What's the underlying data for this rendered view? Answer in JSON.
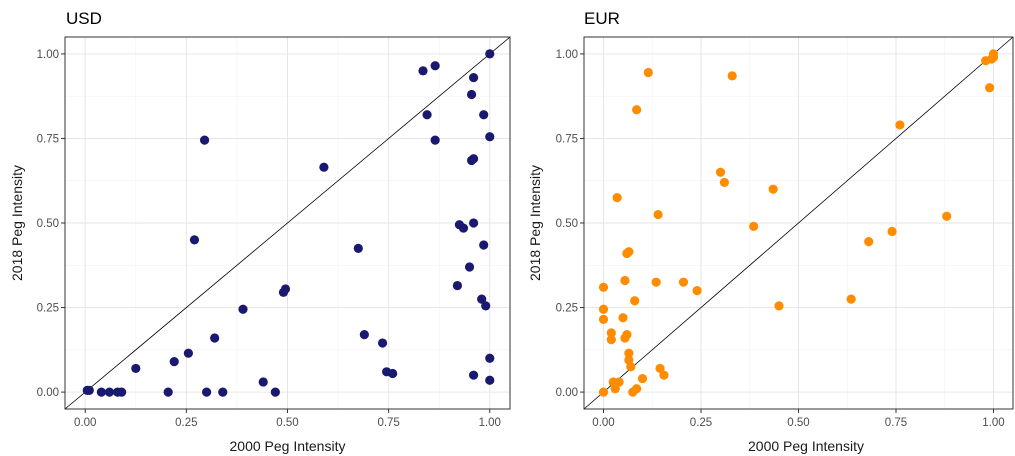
{
  "chart_data": [
    {
      "type": "scatter",
      "title": "USD",
      "xlabel": "2000 Peg Intensity",
      "ylabel": "2018 Peg Intensity",
      "xlim": [
        -0.05,
        1.05
      ],
      "ylim": [
        -0.05,
        1.05
      ],
      "xticks": [
        "0.00",
        "0.25",
        "0.50",
        "0.75",
        "1.00"
      ],
      "yticks": [
        "0.00",
        "0.25",
        "0.50",
        "0.75",
        "1.00"
      ],
      "grid": true,
      "reference_line": "y = x",
      "color": "#191970",
      "points": [
        [
          0.005,
          0.005
        ],
        [
          0.01,
          0.005
        ],
        [
          0.04,
          0.0
        ],
        [
          0.06,
          0.0
        ],
        [
          0.08,
          0.0
        ],
        [
          0.09,
          0.0
        ],
        [
          0.125,
          0.07
        ],
        [
          0.205,
          0.0
        ],
        [
          0.22,
          0.09
        ],
        [
          0.255,
          0.115
        ],
        [
          0.27,
          0.45
        ],
        [
          0.295,
          0.745
        ],
        [
          0.3,
          0.0
        ],
        [
          0.32,
          0.16
        ],
        [
          0.34,
          0.0
        ],
        [
          0.39,
          0.245
        ],
        [
          0.44,
          0.03
        ],
        [
          0.47,
          0.0
        ],
        [
          0.49,
          0.295
        ],
        [
          0.495,
          0.305
        ],
        [
          0.59,
          0.665
        ],
        [
          0.675,
          0.425
        ],
        [
          0.69,
          0.17
        ],
        [
          0.735,
          0.145
        ],
        [
          0.745,
          0.06
        ],
        [
          0.76,
          0.055
        ],
        [
          0.835,
          0.95
        ],
        [
          0.845,
          0.82
        ],
        [
          0.865,
          0.965
        ],
        [
          0.865,
          0.745
        ],
        [
          0.92,
          0.315
        ],
        [
          0.925,
          0.495
        ],
        [
          0.935,
          0.485
        ],
        [
          0.95,
          0.37
        ],
        [
          0.955,
          0.685
        ],
        [
          0.955,
          0.88
        ],
        [
          0.96,
          0.69
        ],
        [
          0.96,
          0.93
        ],
        [
          0.96,
          0.5
        ],
        [
          0.96,
          0.05
        ],
        [
          0.98,
          0.275
        ],
        [
          0.985,
          0.82
        ],
        [
          0.985,
          0.435
        ],
        [
          0.99,
          0.255
        ],
        [
          1.0,
          1.0
        ],
        [
          1.0,
          0.755
        ],
        [
          1.0,
          0.1
        ],
        [
          1.0,
          0.035
        ]
      ]
    },
    {
      "type": "scatter",
      "title": "EUR",
      "xlabel": "2000 Peg Intensity",
      "ylabel": "2018 Peg Intensity",
      "xlim": [
        -0.05,
        1.05
      ],
      "ylim": [
        -0.05,
        1.05
      ],
      "xticks": [
        "0.00",
        "0.25",
        "0.50",
        "0.75",
        "1.00"
      ],
      "yticks": [
        "0.00",
        "0.25",
        "0.50",
        "0.75",
        "1.00"
      ],
      "grid": true,
      "reference_line": "y = x",
      "color": "#ff8c00",
      "points": [
        [
          0.0,
          0.31
        ],
        [
          0.0,
          0.245
        ],
        [
          0.0,
          0.215
        ],
        [
          0.0,
          0.0
        ],
        [
          0.02,
          0.175
        ],
        [
          0.02,
          0.155
        ],
        [
          0.025,
          0.03
        ],
        [
          0.03,
          0.01
        ],
        [
          0.035,
          0.575
        ],
        [
          0.04,
          0.03
        ],
        [
          0.05,
          0.22
        ],
        [
          0.055,
          0.16
        ],
        [
          0.055,
          0.33
        ],
        [
          0.06,
          0.17
        ],
        [
          0.06,
          0.41
        ],
        [
          0.065,
          0.415
        ],
        [
          0.065,
          0.115
        ],
        [
          0.065,
          0.095
        ],
        [
          0.07,
          0.075
        ],
        [
          0.075,
          0.0
        ],
        [
          0.08,
          0.27
        ],
        [
          0.085,
          0.835
        ],
        [
          0.085,
          0.01
        ],
        [
          0.1,
          0.04
        ],
        [
          0.115,
          0.945
        ],
        [
          0.135,
          0.325
        ],
        [
          0.14,
          0.525
        ],
        [
          0.145,
          0.07
        ],
        [
          0.155,
          0.05
        ],
        [
          0.205,
          0.325
        ],
        [
          0.24,
          0.3
        ],
        [
          0.3,
          0.65
        ],
        [
          0.31,
          0.62
        ],
        [
          0.33,
          0.935
        ],
        [
          0.385,
          0.49
        ],
        [
          0.435,
          0.6
        ],
        [
          0.45,
          0.255
        ],
        [
          0.635,
          0.275
        ],
        [
          0.68,
          0.445
        ],
        [
          0.74,
          0.475
        ],
        [
          0.76,
          0.79
        ],
        [
          0.88,
          0.52
        ],
        [
          0.98,
          0.98
        ],
        [
          0.99,
          0.9
        ],
        [
          0.995,
          0.985
        ],
        [
          1.0,
          1.0
        ],
        [
          1.0,
          0.99
        ]
      ]
    }
  ]
}
